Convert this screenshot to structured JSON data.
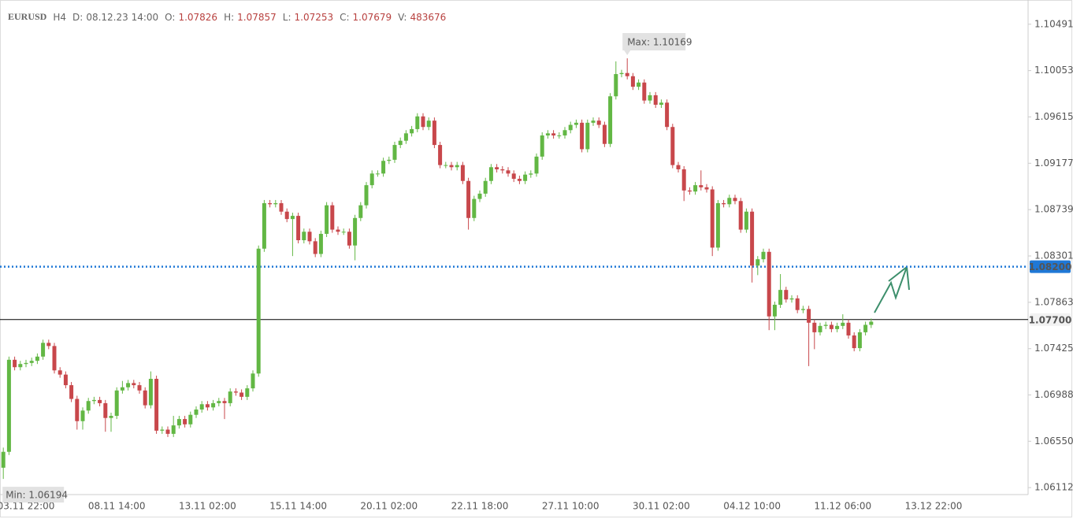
{
  "chart_data": {
    "type": "candlestick",
    "header": {
      "symbol": "EURUSD",
      "timeframe": "H4",
      "fields": [
        {
          "label": "D:",
          "value": "08.12.23 14:00"
        },
        {
          "label": "O:",
          "value": "1.07826"
        },
        {
          "label": "H:",
          "value": "1.07857"
        },
        {
          "label": "L:",
          "value": "1.07253"
        },
        {
          "label": "C:",
          "value": "1.07679"
        },
        {
          "label": "V:",
          "value": "483676"
        }
      ]
    },
    "max_label": "Max: 1.10169",
    "min_label": "Min: 1.06194",
    "categories": [
      null,
      null,
      null,
      null,
      "03.11 22:00",
      null,
      null,
      null,
      null,
      null,
      null,
      null,
      null,
      null,
      null,
      null,
      null,
      null,
      null,
      null,
      "08.11 14:00",
      null,
      null,
      null,
      null,
      null,
      null,
      null,
      null,
      null,
      null,
      null,
      null,
      null,
      null,
      null,
      "13.11 02:00",
      null,
      null,
      null,
      null,
      null,
      null,
      null,
      null,
      null,
      null,
      null,
      null,
      null,
      null,
      null,
      "15.11 14:00",
      null,
      null,
      null,
      null,
      null,
      null,
      null,
      null,
      null,
      null,
      null,
      null,
      null,
      null,
      null,
      "20.11 02:00",
      null,
      null,
      null,
      null,
      null,
      null,
      null,
      null,
      null,
      null,
      null,
      null,
      null,
      null,
      null,
      "22.11 18:00",
      null,
      null,
      null,
      null,
      null,
      null,
      null,
      null,
      null,
      null,
      null,
      null,
      null,
      null,
      null,
      "27.11 10:00",
      null,
      null,
      null,
      null,
      null,
      null,
      null,
      null,
      null,
      null,
      null,
      null,
      null,
      null,
      null,
      "30.11 02:00",
      null,
      null,
      null,
      null,
      null,
      null,
      null,
      null,
      null,
      null,
      null,
      null,
      null,
      null,
      null,
      "04.12 10:00",
      null,
      null,
      null,
      null,
      null,
      null,
      null,
      null,
      null,
      null,
      null,
      null,
      null,
      null,
      null,
      "11.12 06:00",
      null,
      null,
      null,
      null,
      null,
      null,
      null,
      null,
      null,
      null,
      null,
      null,
      null,
      null,
      null,
      "13.12 22:00",
      null,
      null,
      null
    ],
    "open": [
      1.063,
      1.0645,
      1.0732,
      1.0725,
      1.0728,
      1.0729,
      1.0731,
      1.0735,
      1.0748,
      1.0745,
      1.0722,
      1.0718,
      1.0708,
      1.0695,
      1.0674,
      1.0684,
      1.0693,
      1.0694,
      1.0691,
      1.0677,
      1.0679,
      1.0703,
      1.0706,
      1.071,
      1.0708,
      1.0703,
      1.0689,
      1.0714,
      1.0665,
      1.0666,
      1.0662,
      1.067,
      1.0676,
      1.0671,
      1.068,
      1.0685,
      1.069,
      1.0687,
      1.0691,
      1.0693,
      1.0691,
      1.0702,
      1.0701,
      1.0697,
      1.0705,
      1.0719,
      1.0837,
      1.088,
      1.0879,
      1.088,
      1.0872,
      1.0865,
      1.0868,
      1.0845,
      1.0853,
      1.0844,
      1.0832,
      1.0851,
      1.0878,
      1.0855,
      1.0853,
      1.0853,
      1.084,
      1.0866,
      1.0878,
      1.0897,
      1.0908,
      1.0908,
      1.092,
      1.0921,
      1.0935,
      1.0939,
      1.0946,
      1.095,
      1.0962,
      1.0952,
      1.0958,
      1.0935,
      1.0916,
      1.0916,
      1.0914,
      1.0916,
      1.0901,
      1.0866,
      1.0884,
      1.0889,
      1.0901,
      1.0914,
      1.0912,
      1.0911,
      1.0908,
      1.0903,
      1.0901,
      1.0907,
      1.0908,
      1.0924,
      1.0944,
      1.0946,
      1.0944,
      1.0944,
      1.0949,
      1.0954,
      1.0956,
      1.0931,
      1.0956,
      1.0958,
      1.0954,
      1.0936,
      1.0981,
      1.1002,
      1.1003,
      1.1,
      1.099,
      1.0994,
      1.0977,
      1.0982,
      1.0973,
      1.0975,
      1.0952,
      1.0916,
      1.0912,
      1.0892,
      1.0891,
      1.0897,
      1.0895,
      1.0893,
      1.0838,
      1.088,
      1.0879,
      1.0885,
      1.0882,
      1.0855,
      1.0872,
      1.0821,
      1.0827,
      1.0834,
      1.0773,
      1.0784,
      1.0798,
      1.0789,
      1.079,
      1.0779,
      1.078,
      1.0767,
      1.0758,
      1.0764,
      1.0765,
      1.0761,
      1.0764,
      1.0767,
      1.0755,
      1.0743,
      1.0758,
      1.0765,
      null,
      null,
      null,
      null,
      null,
      null,
      null,
      null,
      null,
      null,
      null,
      null,
      null,
      null
    ],
    "high": [
      1.0649,
      1.0735,
      1.0735,
      1.0731,
      1.0732,
      1.0734,
      1.0738,
      1.0751,
      1.0751,
      1.0748,
      1.0725,
      1.0721,
      1.0711,
      1.0698,
      1.0687,
      1.0696,
      1.0697,
      1.0697,
      1.0694,
      1.0682,
      1.0706,
      1.0712,
      1.0713,
      1.0713,
      1.0711,
      1.0706,
      1.0721,
      1.0717,
      1.0669,
      1.0669,
      1.0679,
      1.0679,
      1.0679,
      1.0683,
      1.0688,
      1.0693,
      1.0693,
      1.0694,
      1.0696,
      1.0696,
      1.0705,
      1.0705,
      1.0704,
      1.0708,
      1.0722,
      1.084,
      1.0883,
      1.0883,
      1.0883,
      1.0883,
      1.0875,
      1.0871,
      1.0871,
      1.0856,
      1.0856,
      1.0847,
      1.0854,
      1.0881,
      1.0881,
      1.0858,
      1.0856,
      1.0856,
      1.0869,
      1.0881,
      1.09,
      1.0911,
      1.0911,
      1.0923,
      1.0924,
      1.0938,
      1.0942,
      1.0949,
      1.0953,
      1.0965,
      1.0965,
      1.0961,
      1.0961,
      1.0938,
      1.0919,
      1.0919,
      1.0919,
      1.0919,
      1.0904,
      1.0887,
      1.0892,
      1.0904,
      1.0917,
      1.0917,
      1.0915,
      1.0914,
      1.0911,
      1.0906,
      1.091,
      1.0911,
      1.0927,
      1.0947,
      1.0949,
      1.0949,
      1.0947,
      1.0952,
      1.0957,
      1.0959,
      1.0959,
      1.0959,
      1.0961,
      1.0961,
      1.0957,
      1.0984,
      1.1014,
      1.1006,
      1.10169,
      1.1003,
      1.0997,
      1.0997,
      1.0985,
      1.0985,
      1.0978,
      1.0978,
      1.0955,
      1.0919,
      1.0915,
      1.0895,
      1.09,
      1.0911,
      1.0898,
      1.0896,
      1.0883,
      1.0883,
      1.0888,
      1.0888,
      1.0885,
      1.0875,
      1.0875,
      1.083,
      1.0837,
      1.0837,
      1.0787,
      1.0813,
      1.0801,
      1.0793,
      1.0793,
      1.0783,
      1.0783,
      1.077,
      1.0767,
      1.0768,
      1.0768,
      1.0767,
      1.0775,
      1.077,
      1.0758,
      1.0761,
      1.0768,
      1.0771,
      null,
      null,
      null,
      null,
      null,
      null,
      null,
      null,
      null,
      null,
      null,
      null,
      null,
      null
    ],
    "low": [
      1.06194,
      1.0642,
      1.0722,
      1.0722,
      1.0725,
      1.0726,
      1.0728,
      1.0732,
      1.0742,
      1.0719,
      1.0715,
      1.0705,
      1.0692,
      1.0666,
      1.0666,
      1.0681,
      1.069,
      1.0688,
      1.0664,
      1.0664,
      1.0676,
      1.07,
      1.0703,
      1.0705,
      1.07,
      1.0686,
      1.0686,
      1.0662,
      1.0662,
      1.0659,
      1.0659,
      1.0667,
      1.0668,
      1.0668,
      1.0677,
      1.0682,
      1.0684,
      1.0684,
      1.0688,
      1.0676,
      1.0688,
      1.0698,
      1.0694,
      1.0694,
      1.0702,
      1.0716,
      1.0834,
      1.0876,
      1.0876,
      1.0869,
      1.0862,
      1.083,
      1.0842,
      1.0842,
      1.0841,
      1.0829,
      1.0829,
      1.0848,
      1.0852,
      1.085,
      1.085,
      1.0837,
      1.0826,
      1.0863,
      1.0875,
      1.0894,
      1.0905,
      1.0905,
      1.0917,
      1.0918,
      1.0932,
      1.0936,
      1.0943,
      1.0947,
      1.0949,
      1.0949,
      1.0932,
      1.0913,
      1.0913,
      1.0911,
      1.0911,
      1.0898,
      1.0855,
      1.0863,
      1.0881,
      1.0886,
      1.0898,
      1.0909,
      1.0908,
      1.0905,
      1.09,
      1.0898,
      1.0898,
      1.0904,
      1.0905,
      1.0921,
      1.0941,
      1.0941,
      1.0941,
      1.0941,
      1.0946,
      1.0951,
      1.0928,
      1.0928,
      1.0953,
      1.0951,
      1.0933,
      1.0933,
      1.0978,
      1.0999,
      1.0997,
      1.0987,
      1.0987,
      1.0974,
      1.0974,
      1.097,
      1.097,
      1.0949,
      1.0913,
      1.0909,
      1.0882,
      1.0888,
      1.0888,
      1.0892,
      1.089,
      1.083,
      1.0835,
      1.0876,
      1.0876,
      1.0879,
      1.0852,
      1.0852,
      1.0805,
      1.0812,
      1.0824,
      1.076,
      1.076,
      1.0781,
      1.0786,
      1.0786,
      1.0776,
      1.0776,
      1.0726,
      1.0742,
      1.0755,
      1.0761,
      1.0758,
      1.0758,
      1.0761,
      1.0752,
      1.074,
      1.074,
      1.0755,
      1.0762,
      null,
      null,
      null,
      null,
      null,
      null,
      null,
      null,
      null,
      null,
      null,
      null,
      null,
      null
    ],
    "close": [
      1.0645,
      1.0732,
      1.0725,
      1.0728,
      1.0729,
      1.0731,
      1.0735,
      1.0748,
      1.0745,
      1.0722,
      1.0718,
      1.0708,
      1.0695,
      1.0674,
      1.0684,
      1.0693,
      1.0694,
      1.0691,
      1.0677,
      1.0679,
      1.0703,
      1.0706,
      1.071,
      1.0708,
      1.0703,
      1.0689,
      1.0714,
      1.0665,
      1.0666,
      1.0662,
      1.067,
      1.0676,
      1.0671,
      1.068,
      1.0685,
      1.069,
      1.0687,
      1.0691,
      1.0693,
      1.0691,
      1.0702,
      1.0701,
      1.0697,
      1.0705,
      1.0719,
      1.0837,
      1.088,
      1.0879,
      1.088,
      1.0872,
      1.0865,
      1.0868,
      1.0845,
      1.0853,
      1.0844,
      1.0832,
      1.0851,
      1.0878,
      1.0855,
      1.0853,
      1.0853,
      1.084,
      1.0866,
      1.0878,
      1.0897,
      1.0908,
      1.0908,
      1.092,
      1.0921,
      1.0935,
      1.0939,
      1.0946,
      1.095,
      1.0962,
      1.0952,
      1.0958,
      1.0935,
      1.0916,
      1.0916,
      1.0914,
      1.0916,
      1.0901,
      1.0866,
      1.0884,
      1.0889,
      1.0901,
      1.0914,
      1.0912,
      1.0911,
      1.0908,
      1.0903,
      1.0901,
      1.0907,
      1.0908,
      1.0924,
      1.0944,
      1.0946,
      1.0944,
      1.0944,
      1.0949,
      1.0954,
      1.0956,
      1.0931,
      1.0956,
      1.0958,
      1.0954,
      1.0936,
      1.0981,
      1.1002,
      1.1003,
      1.1,
      1.099,
      1.0994,
      1.0977,
      1.0982,
      1.0973,
      1.0975,
      1.0952,
      1.0916,
      1.0912,
      1.0892,
      1.0891,
      1.0897,
      1.0895,
      1.0893,
      1.0838,
      1.088,
      1.0879,
      1.0885,
      1.0882,
      1.0855,
      1.0872,
      1.0821,
      1.0827,
      1.0834,
      1.0773,
      1.0784,
      1.0798,
      1.0789,
      1.079,
      1.0779,
      1.078,
      1.0767,
      1.0758,
      1.0764,
      1.0765,
      1.0761,
      1.0764,
      1.0767,
      1.0755,
      1.0743,
      1.0758,
      1.0765,
      1.0768,
      null,
      null,
      null,
      null,
      null,
      null,
      null,
      null,
      null,
      null,
      null,
      null,
      null,
      null
    ],
    "up_color": "#62b744",
    "down_color": "#c8474b",
    "ylim": [
      1.06046,
      1.1072
    ],
    "yticks": [
      1.10491,
      1.10053,
      1.09615,
      1.09177,
      1.08739,
      1.08301,
      1.07863,
      1.07425,
      1.06988,
      {
        "value": 1.0655,
        "label": "1.06550"
      },
      1.06112
    ],
    "price_lines": [
      {
        "value": 1.082,
        "label": "1.08200",
        "color": "#1f78d6",
        "style": "dotted"
      },
      {
        "value": 1.077,
        "label": "1.07700",
        "color": "#000000",
        "style": "solid"
      }
    ]
  }
}
